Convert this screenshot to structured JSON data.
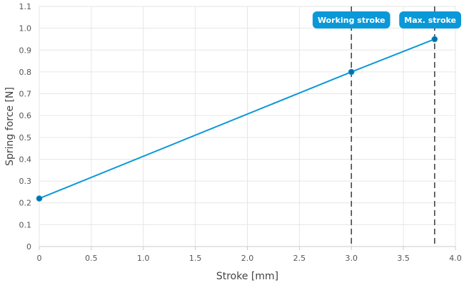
{
  "chart_data": {
    "type": "line",
    "xlabel": "Stroke [mm]",
    "ylabel": "Spring force [N]",
    "xlim": [
      0,
      4.0
    ],
    "ylim": [
      0,
      1.1
    ],
    "x_ticks": [
      "0",
      "0.5",
      "1.0",
      "1.5",
      "2.0",
      "2.5",
      "3.0",
      "3.5",
      "4.0"
    ],
    "y_ticks": [
      "0",
      "0.1",
      "0.2",
      "0.3",
      "0.4",
      "0.5",
      "0.6",
      "0.7",
      "0.8",
      "0.9",
      "1.0",
      "1.1"
    ],
    "grid": true,
    "series": [
      {
        "color": "#0a98d8",
        "points": [
          {
            "x": 0,
            "y": 0.22
          },
          {
            "x": 3.0,
            "y": 0.8
          },
          {
            "x": 3.8,
            "y": 0.95
          }
        ]
      }
    ],
    "reference_lines": [
      {
        "x": 3.0,
        "label": "Working stroke"
      },
      {
        "x": 3.8,
        "label": "Max. stroke"
      }
    ],
    "colors": {
      "line": "#0a98d8",
      "marker": "#0a6fa0",
      "badge": "#0a98d8",
      "reference": "#444444"
    }
  }
}
